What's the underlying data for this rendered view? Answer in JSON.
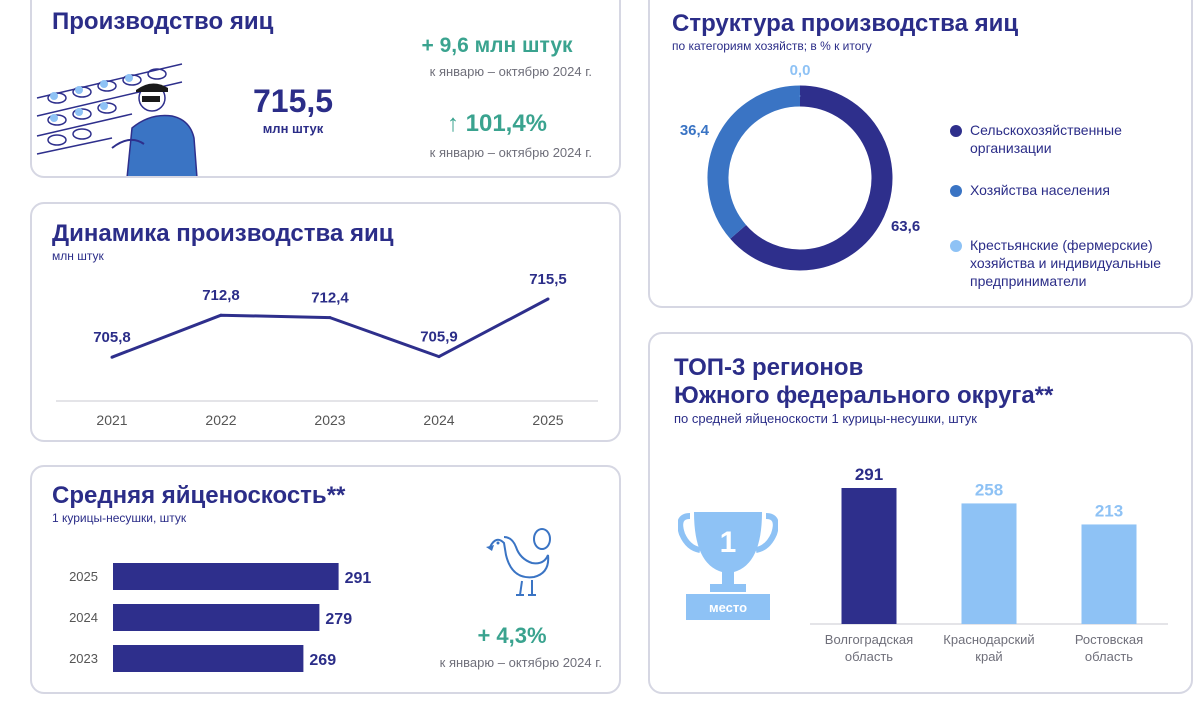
{
  "colors": {
    "dark": "#2e2f8c",
    "mid": "#3a74c4",
    "light": "#8ec2f5",
    "green": "#3aa38f",
    "text": "#2b2d88"
  },
  "production": {
    "title": "Производство яиц",
    "value": "715,5",
    "unit": "млн штук",
    "delta_abs": "+ 9,6 млн штук",
    "delta_abs_note": "к январю – октябрю 2024 г.",
    "delta_pct": "↑ 101,4%",
    "delta_pct_note": "к январю – октябрю 2024 г."
  },
  "dynamics": {
    "title": "Динамика производства яиц",
    "subtitle": "млн штук",
    "chart_data": {
      "type": "line",
      "x": [
        "2021",
        "2022",
        "2023",
        "2024",
        "2025"
      ],
      "values": [
        705.8,
        712.8,
        712.4,
        705.9,
        715.5
      ],
      "labels": [
        "705,8",
        "712,8",
        "712,4",
        "705,9",
        "715,5"
      ],
      "ylim": [
        703,
        718
      ]
    }
  },
  "structure": {
    "title": "Структура производства яиц",
    "subtitle": "по категориям хозяйств; в % к итогу",
    "chart_data": {
      "type": "pie",
      "categories": [
        "Сельскохозяйственные организации",
        "Хозяйства населения",
        "Крестьянские (фермерские) хозяйства и индивидуальные предприниматели"
      ],
      "values": [
        63.6,
        36.4,
        0.0
      ],
      "labels": [
        "63,6",
        "36,4",
        "0,0"
      ]
    },
    "legend": [
      {
        "line1": "Сельскохозяйственные",
        "line2": "организации",
        "line3": ""
      },
      {
        "line1": "Хозяйства населения",
        "line2": "",
        "line3": ""
      },
      {
        "line1": "Крестьянские (фермерские)",
        "line2": "хозяйства и индивидуальные",
        "line3": "предприниматели"
      }
    ]
  },
  "laying": {
    "title": "Средняя яйценоскость**",
    "subtitle": "1 курицы-несушки, штук",
    "chart_data": {
      "type": "bar",
      "orientation": "horizontal",
      "categories": [
        "2025",
        "2024",
        "2023"
      ],
      "values": [
        291,
        279,
        269
      ],
      "xlim": [
        150,
        300
      ]
    },
    "delta": "+ 4,3%",
    "delta_note": "к январю – октябрю 2024 г."
  },
  "top3": {
    "title_line1": "ТОП-3 регионов",
    "title_line2": "Южного федерального округа**",
    "subtitle": "по средней яйценоскости 1 курицы-несушки, штук",
    "trophy_number": "1",
    "trophy_label": "место",
    "chart_data": {
      "type": "bar",
      "categories": [
        "Волгоградская область",
        "Краснодарский край",
        "Ростовская область"
      ],
      "values": [
        291,
        258,
        213
      ],
      "ylim": [
        0,
        291
      ]
    },
    "cat_lines": [
      {
        "l1": "Волгоградская",
        "l2": "область"
      },
      {
        "l1": "Краснодарский",
        "l2": "край"
      },
      {
        "l1": "Ростовская",
        "l2": "область"
      }
    ]
  }
}
